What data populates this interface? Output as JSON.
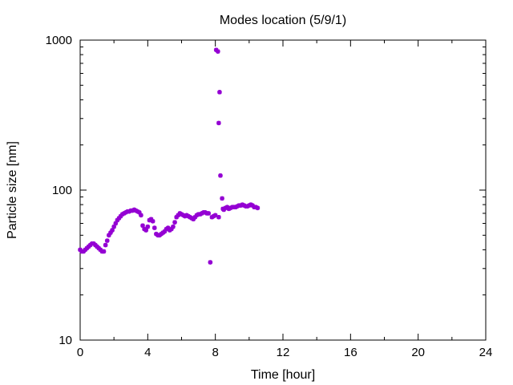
{
  "chart_data": {
    "type": "scatter",
    "title": "Modes location (5/9/1)",
    "xlabel": "Time [hour]",
    "ylabel": "Particle size [nm]",
    "xlim": [
      0,
      24
    ],
    "ylim": [
      10,
      1000
    ],
    "yscale": "log",
    "xticks": [
      0,
      4,
      8,
      12,
      16,
      20,
      24
    ],
    "xtick_labels": [
      "0",
      "4",
      "8",
      "12",
      "16",
      "20",
      "24"
    ],
    "yticks": [
      10,
      100,
      1000
    ],
    "ytick_labels": [
      "10",
      "100",
      "1000"
    ],
    "grid": false,
    "legend": false,
    "marker_color": "#9400d3",
    "series": [
      {
        "marker": "star",
        "points": [
          [
            0.0,
            40
          ],
          [
            0.1,
            39
          ],
          [
            0.2,
            39
          ],
          [
            0.3,
            40
          ],
          [
            0.4,
            41
          ],
          [
            0.5,
            42
          ],
          [
            0.6,
            43
          ],
          [
            0.7,
            44
          ],
          [
            0.8,
            44
          ],
          [
            0.9,
            43
          ],
          [
            1.0,
            42
          ],
          [
            1.1,
            41
          ],
          [
            1.2,
            40
          ],
          [
            1.3,
            39
          ],
          [
            1.4,
            39
          ],
          [
            1.5,
            43
          ],
          [
            1.6,
            46
          ],
          [
            1.7,
            50
          ],
          [
            1.8,
            52
          ],
          [
            1.9,
            54
          ],
          [
            2.0,
            57
          ],
          [
            2.1,
            60
          ],
          [
            2.2,
            63
          ],
          [
            2.3,
            65
          ],
          [
            2.4,
            67
          ],
          [
            2.5,
            69
          ],
          [
            2.6,
            70
          ],
          [
            2.7,
            71
          ],
          [
            2.8,
            72
          ],
          [
            2.9,
            72
          ],
          [
            3.0,
            73
          ],
          [
            3.1,
            73
          ],
          [
            3.2,
            74
          ],
          [
            3.3,
            73
          ],
          [
            3.4,
            72
          ],
          [
            3.5,
            71
          ],
          [
            3.6,
            68
          ],
          [
            3.7,
            58
          ],
          [
            3.8,
            55
          ],
          [
            3.9,
            54
          ],
          [
            4.0,
            57
          ],
          [
            4.1,
            63
          ],
          [
            4.2,
            64
          ],
          [
            4.3,
            62
          ],
          [
            4.4,
            56
          ],
          [
            4.5,
            51
          ],
          [
            4.6,
            50
          ],
          [
            4.7,
            50
          ],
          [
            4.8,
            51
          ],
          [
            4.9,
            52
          ],
          [
            5.0,
            53
          ],
          [
            5.1,
            55
          ],
          [
            5.2,
            56
          ],
          [
            5.3,
            54
          ],
          [
            5.4,
            55
          ],
          [
            5.5,
            57
          ],
          [
            5.6,
            61
          ],
          [
            5.7,
            66
          ],
          [
            5.8,
            68
          ],
          [
            5.9,
            70
          ],
          [
            6.0,
            69
          ],
          [
            6.1,
            68
          ],
          [
            6.2,
            67
          ],
          [
            6.3,
            68
          ],
          [
            6.4,
            67
          ],
          [
            6.5,
            66
          ],
          [
            6.6,
            65
          ],
          [
            6.7,
            64
          ],
          [
            6.8,
            66
          ],
          [
            6.9,
            68
          ],
          [
            7.0,
            69
          ],
          [
            7.1,
            69
          ],
          [
            7.2,
            70
          ],
          [
            7.3,
            71
          ],
          [
            7.4,
            71
          ],
          [
            7.5,
            70
          ],
          [
            7.6,
            70
          ],
          [
            7.7,
            33
          ],
          [
            7.8,
            66
          ],
          [
            7.9,
            67
          ],
          [
            8.0,
            68
          ],
          [
            8.05,
            860
          ],
          [
            8.15,
            840
          ],
          [
            8.2,
            66
          ],
          [
            8.25,
            450
          ],
          [
            8.2,
            280
          ],
          [
            8.3,
            125
          ],
          [
            8.4,
            88
          ],
          [
            8.45,
            75
          ],
          [
            8.5,
            74
          ],
          [
            8.6,
            76
          ],
          [
            8.7,
            77
          ],
          [
            8.8,
            75
          ],
          [
            8.9,
            76
          ],
          [
            9.0,
            77
          ],
          [
            9.1,
            77
          ],
          [
            9.2,
            77
          ],
          [
            9.3,
            78
          ],
          [
            9.4,
            79
          ],
          [
            9.5,
            79
          ],
          [
            9.6,
            80
          ],
          [
            9.7,
            79
          ],
          [
            9.8,
            78
          ],
          [
            9.9,
            78
          ],
          [
            10.0,
            79
          ],
          [
            10.1,
            80
          ],
          [
            10.2,
            79
          ],
          [
            10.3,
            77
          ],
          [
            10.4,
            77
          ],
          [
            10.5,
            76
          ]
        ]
      }
    ]
  }
}
